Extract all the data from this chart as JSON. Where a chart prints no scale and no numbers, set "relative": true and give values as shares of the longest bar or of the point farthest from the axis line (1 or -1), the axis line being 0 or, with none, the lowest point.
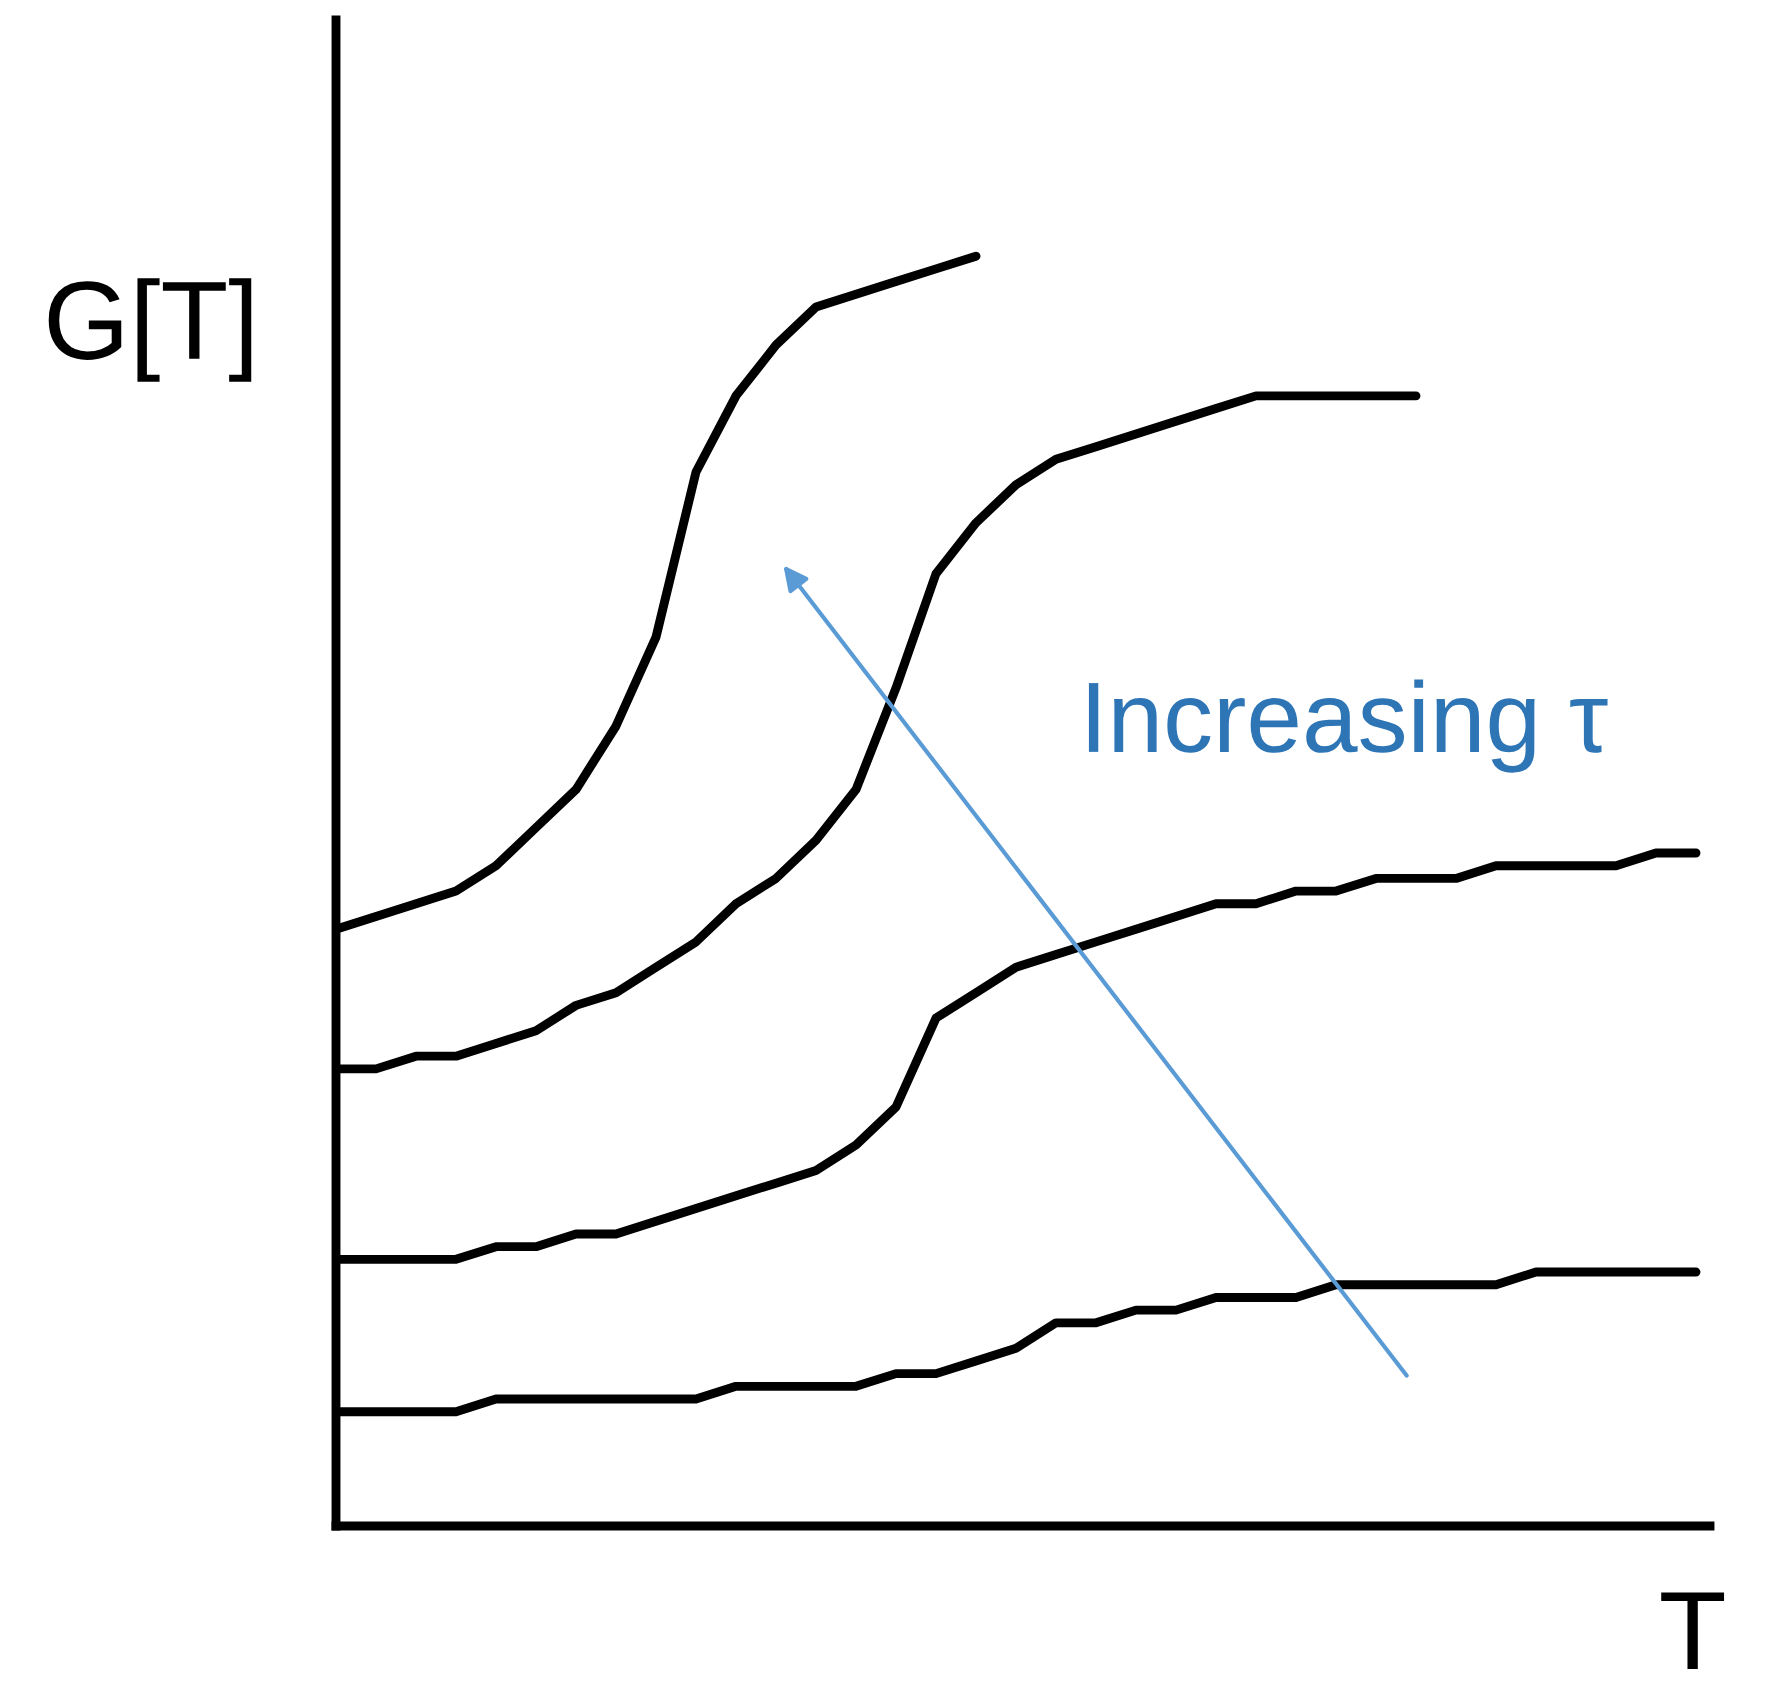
{
  "chart_data": {
    "type": "line",
    "relative": true,
    "xlabel": "T",
    "ylabel": "G[T]",
    "annotations": [
      "Increasing τ"
    ],
    "marker": "none",
    "line_style": "solid",
    "grid": false,
    "legend": false,
    "categories": [
      null,
      null,
      null,
      null,
      null,
      null,
      null,
      null,
      null,
      null,
      null,
      null,
      null,
      null,
      null,
      null,
      null,
      null,
      null,
      null,
      null,
      null,
      null,
      null,
      null,
      null,
      null,
      null,
      null,
      null,
      null,
      null,
      null,
      null,
      null
    ],
    "series": [
      {
        "color": "#000000",
        "values": [
          0.47,
          0.48,
          0.49,
          0.5,
          0.52,
          0.55,
          0.58,
          0.63,
          0.7,
          0.83,
          0.89,
          0.93,
          0.96,
          0.97,
          0.98,
          0.99,
          1.0,
          null,
          null,
          null,
          null,
          null,
          null,
          null,
          null,
          null,
          null,
          null,
          null,
          null,
          null,
          null,
          null,
          null,
          null
        ]
      },
      {
        "color": "#000000",
        "values": [
          0.36,
          0.36,
          0.37,
          0.37,
          0.38,
          0.39,
          0.41,
          0.42,
          0.44,
          0.46,
          0.49,
          0.51,
          0.54,
          0.58,
          0.66,
          0.75,
          0.79,
          0.82,
          0.84,
          0.85,
          0.86,
          0.87,
          0.88,
          0.89,
          0.89,
          0.89,
          0.89,
          0.89,
          null,
          null,
          null,
          null,
          null,
          null,
          null
        ]
      },
      {
        "color": "#000000",
        "values": [
          0.21,
          0.21,
          0.21,
          0.21,
          0.22,
          0.22,
          0.23,
          0.23,
          0.24,
          0.25,
          0.26,
          0.27,
          0.28,
          0.3,
          0.33,
          0.4,
          0.42,
          0.44,
          0.45,
          0.46,
          0.47,
          0.48,
          0.49,
          0.49,
          0.5,
          0.5,
          0.51,
          0.51,
          0.51,
          0.52,
          0.52,
          0.52,
          0.52,
          0.53,
          0.53
        ]
      },
      {
        "color": "#000000",
        "values": [
          0.09,
          0.09,
          0.09,
          0.09,
          0.1,
          0.1,
          0.1,
          0.1,
          0.1,
          0.1,
          0.11,
          0.11,
          0.11,
          0.11,
          0.12,
          0.12,
          0.13,
          0.14,
          0.16,
          0.16,
          0.17,
          0.17,
          0.18,
          0.18,
          0.18,
          0.19,
          0.19,
          0.19,
          0.19,
          0.19,
          0.2,
          0.2,
          0.2,
          0.2,
          0.2
        ]
      }
    ]
  }
}
